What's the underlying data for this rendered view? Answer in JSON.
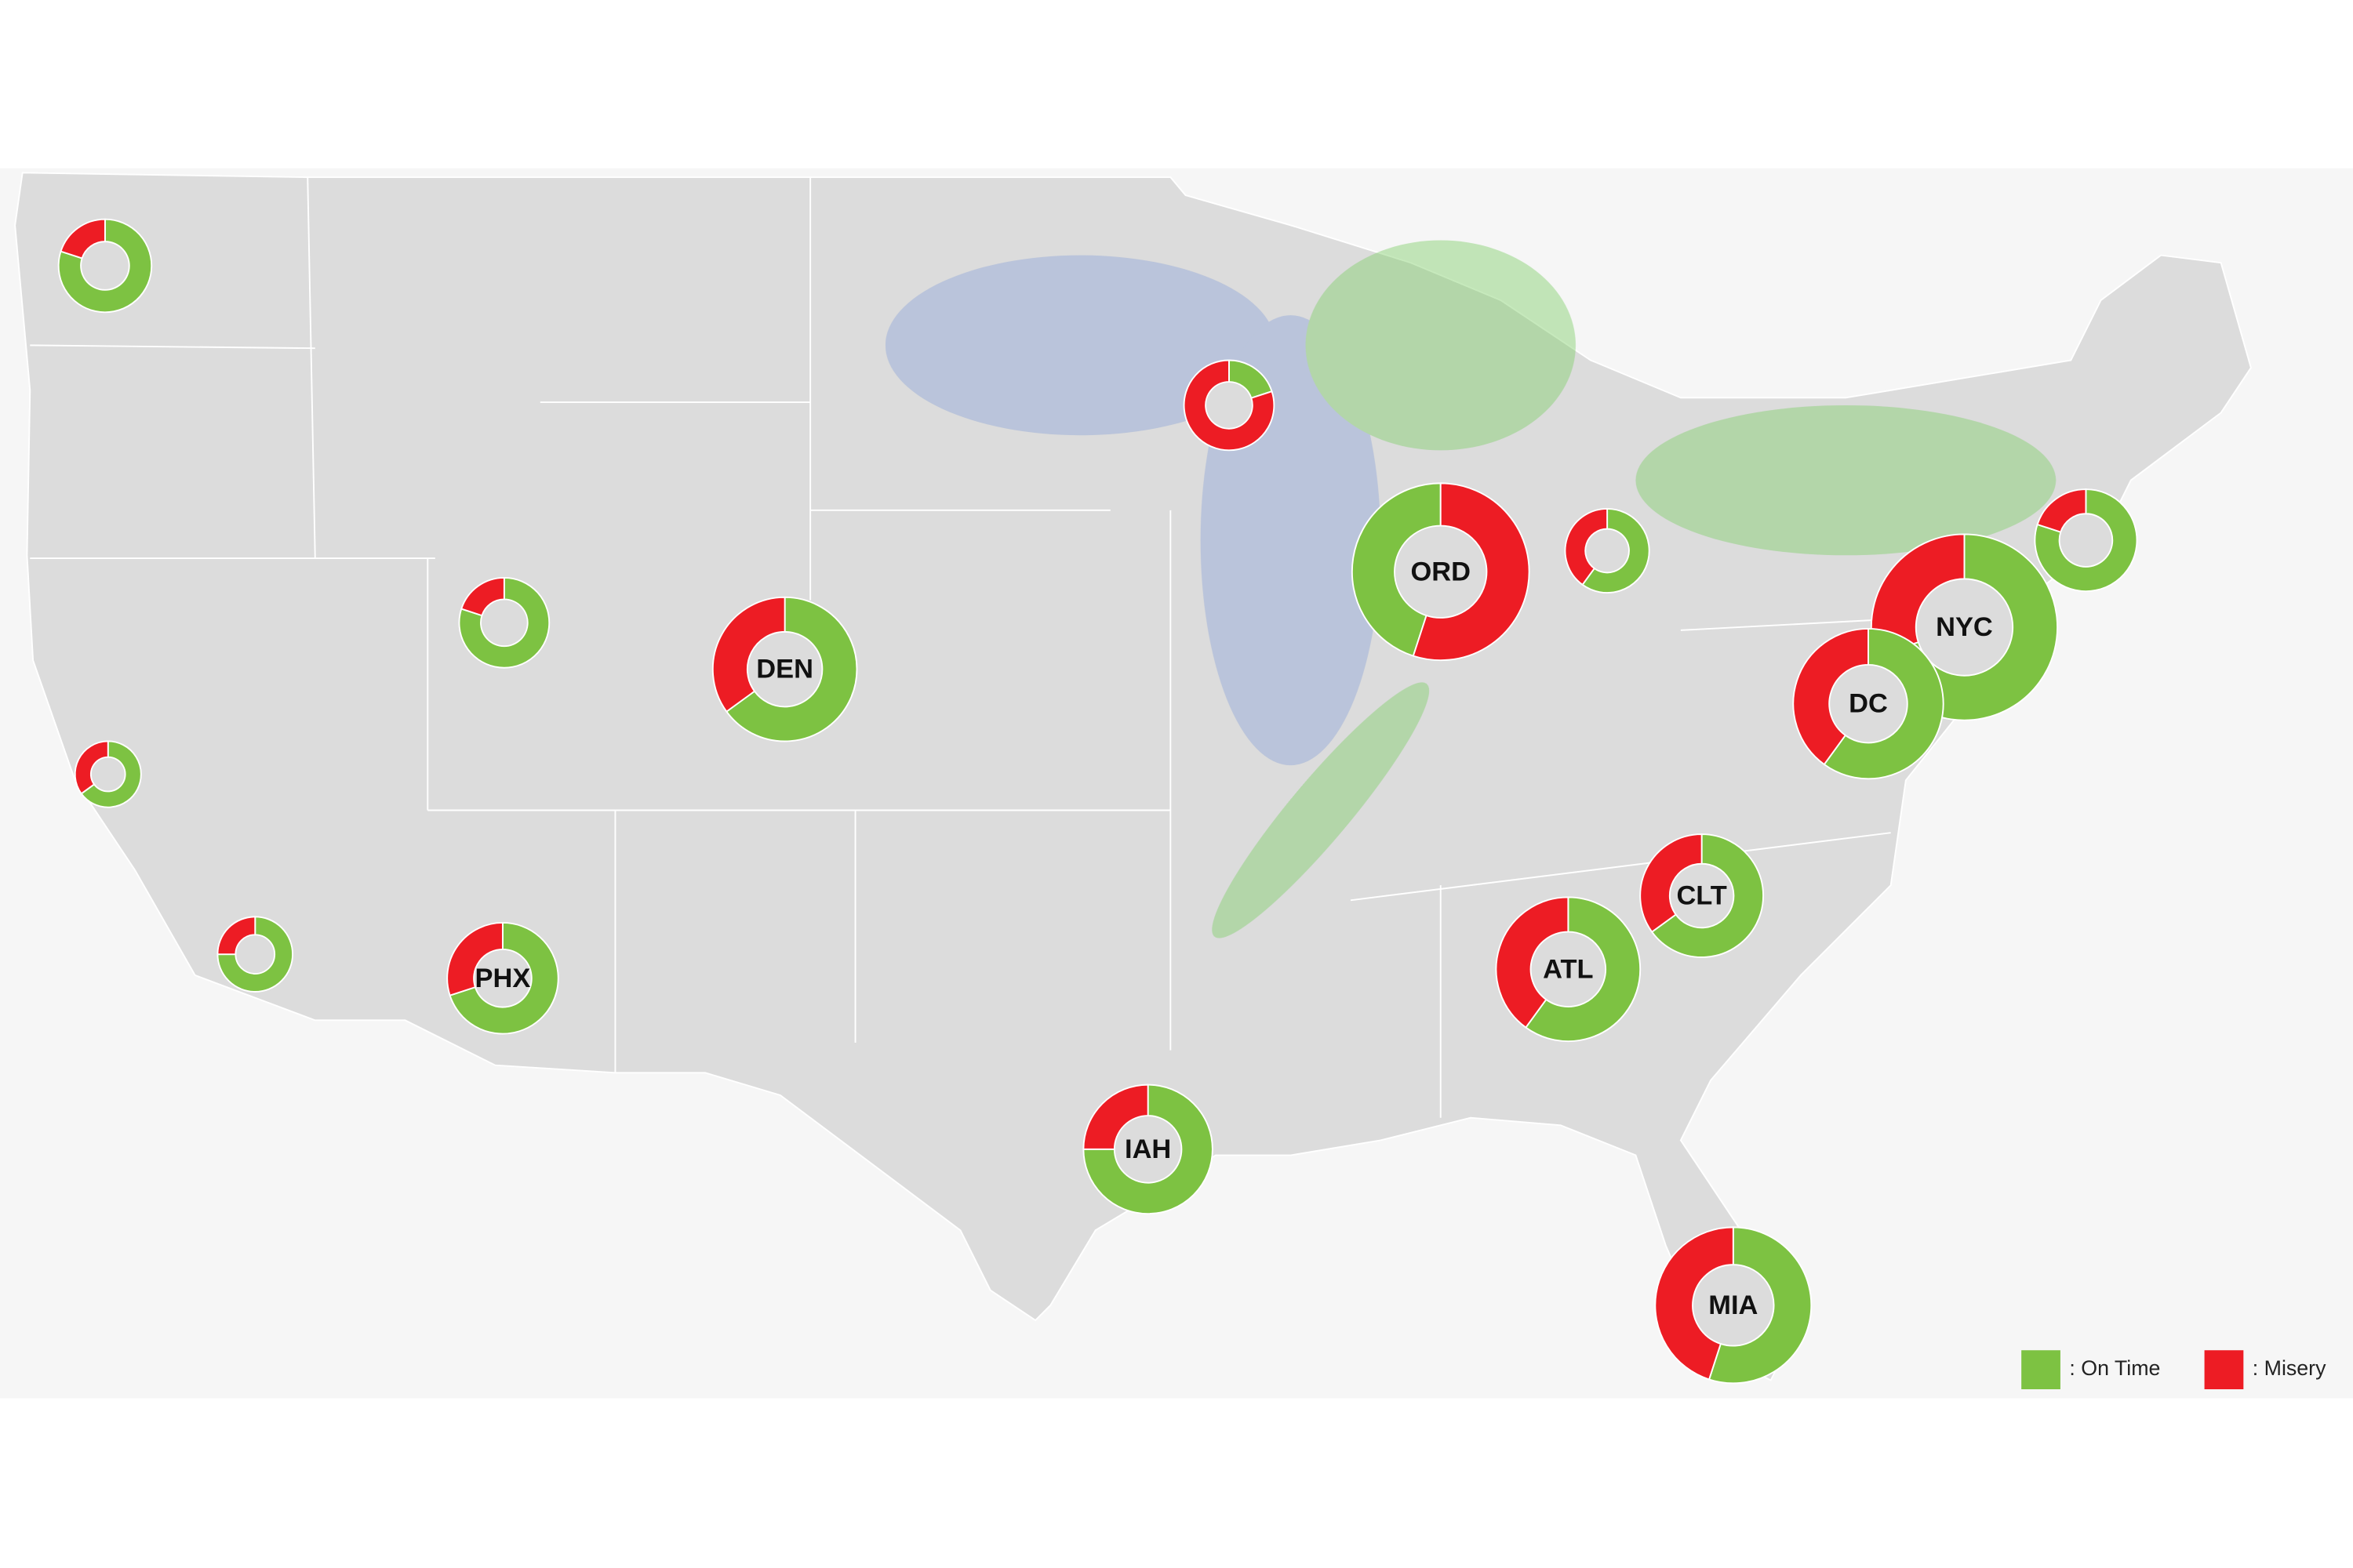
{
  "legend": [
    {
      "label": ": On Time",
      "color": "#7dc242"
    },
    {
      "label": ": Misery",
      "color": "#ed1c24"
    }
  ],
  "airports": [
    {
      "on_time": 80,
      "misery": 20
    },
    {
      "on_time": 65,
      "misery": 35
    },
    {
      "on_time": 75,
      "misery": 25
    },
    {
      "on_time": 80,
      "misery": 20
    },
    {
      "label": "PHX",
      "on_time": 70,
      "misery": 30
    },
    {
      "label": "DEN",
      "on_time": 65,
      "misery": 35
    },
    {
      "on_time": 20,
      "misery": 80
    },
    {
      "label": "ORD",
      "on_time": 45,
      "misery": 55
    },
    {
      "on_time": 60,
      "misery": 40
    },
    {
      "on_time": 80,
      "misery": 20
    },
    {
      "label": "NYC",
      "on_time": 70,
      "misery": 30
    },
    {
      "label": "DC",
      "on_time": 60,
      "misery": 40
    },
    {
      "label": "CLT",
      "on_time": 65,
      "misery": 35
    },
    {
      "label": "ATL",
      "on_time": 60,
      "misery": 40
    },
    {
      "label": "IAH",
      "on_time": 75,
      "misery": 25
    },
    {
      "label": "MIA",
      "on_time": 55,
      "misery": 45
    }
  ]
}
